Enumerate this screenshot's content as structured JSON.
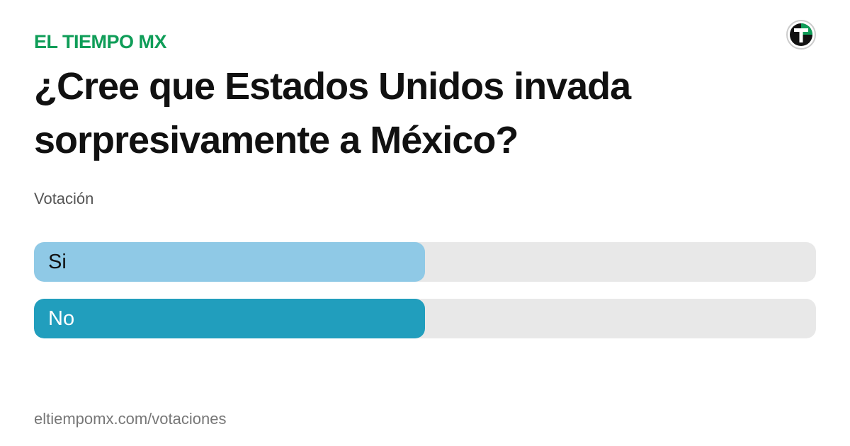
{
  "brand": "EL TIEMPO MX",
  "question": "¿Cree que Estados Unidos invada sorpresivamente a México?",
  "subtitle": "Votación",
  "poll": {
    "options": [
      {
        "label": "Si",
        "value": 50,
        "color": "#8fc9e6"
      },
      {
        "label": "No",
        "value": 50,
        "color": "#219ebd"
      }
    ],
    "xlim": [
      0,
      100
    ]
  },
  "footer": "eltiempomx.com/votaciones"
}
